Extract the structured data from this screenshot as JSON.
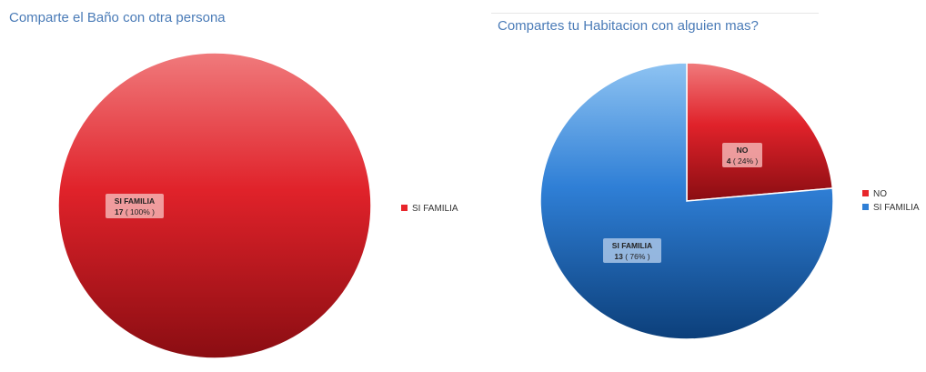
{
  "chart_data": [
    {
      "type": "pie",
      "title": "Comparte el Baño con otra persona",
      "slices": [
        {
          "label": "SI FAMILIA",
          "value": 17,
          "percent_label": "( 100% )",
          "color": "#e8262b"
        }
      ],
      "legend": [
        "SI FAMILIA"
      ],
      "legend_position": "right"
    },
    {
      "type": "pie",
      "title": "Compartes tu Habitacion con alguien mas?",
      "slices": [
        {
          "label": "NO",
          "value": 4,
          "percent_label": "( 24% )",
          "color": "#e8262b"
        },
        {
          "label": "SI FAMILIA",
          "value": 13,
          "percent_label": "( 76% )",
          "color": "#2f7fd6"
        }
      ],
      "legend": [
        "NO",
        "SI FAMILIA"
      ],
      "legend_position": "right"
    }
  ]
}
